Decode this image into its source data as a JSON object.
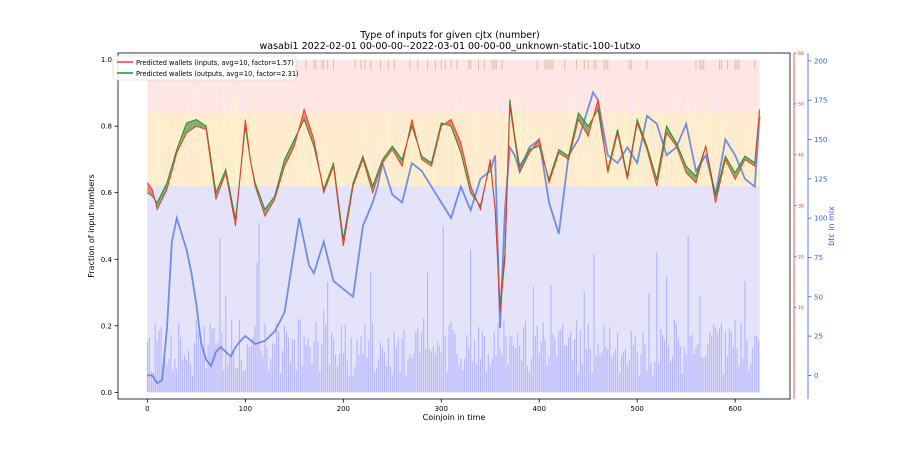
{
  "chart_data": {
    "type": "line",
    "title": "Type of inputs for given cjtx (number)",
    "subtitle": "wasabi1 2022-02-01 00-00-00--2022-03-01 00-00-00_unknown-static-100-1utxo",
    "xlabel": "Coinjoin in time",
    "ylabel": "Fraction of input numbers",
    "y2label": "btc in mix",
    "xlim": [
      -30,
      656
    ],
    "ylim": [
      -0.02,
      1.02
    ],
    "y2lim": [
      -15,
      205
    ],
    "y3lim": [
      -8,
      60
    ],
    "xticks": [
      0,
      100,
      200,
      300,
      400,
      500,
      600
    ],
    "yticks": [
      0.0,
      0.2,
      0.4,
      0.6,
      0.8,
      1.0
    ],
    "y2ticks": [
      0,
      25,
      50,
      75,
      100,
      125,
      150,
      175,
      200
    ],
    "y3ticks": [
      10,
      20,
      30,
      40,
      50,
      60
    ],
    "legend_position": "top-left",
    "legend": [
      {
        "label": "Predicted wallets (inputs, avg=10, factor=1.57)",
        "color": "#e8402f"
      },
      {
        "label": "Predicted wallets (outputs, avg=10, factor=2.31)",
        "color": "#2e8b2e"
      }
    ],
    "colors": {
      "inputs_line": "#e8402f",
      "outputs_line": "#2e8b2e",
      "btc_line": "#5b7fde",
      "stack_bottom": "#b4b4ff",
      "stack_middle": "#ffeeb8",
      "stack_top": "#ffc8c8",
      "y2_axis": "#3a62d8",
      "y3_axis": "#e0302a"
    },
    "series": [
      {
        "name": "Predicted wallets (inputs, avg=10, factor=1.57)",
        "x": [
          0,
          5,
          10,
          15,
          20,
          30,
          40,
          50,
          60,
          70,
          80,
          90,
          100,
          105,
          110,
          120,
          130,
          140,
          150,
          160,
          170,
          180,
          190,
          200,
          210,
          220,
          230,
          240,
          250,
          260,
          270,
          280,
          290,
          300,
          310,
          320,
          330,
          340,
          350,
          355,
          360,
          365,
          370,
          375,
          380,
          390,
          400,
          410,
          420,
          430,
          440,
          450,
          460,
          470,
          480,
          490,
          500,
          510,
          520,
          530,
          540,
          550,
          560,
          570,
          580,
          590,
          600,
          610,
          620,
          625
        ],
        "values": [
          0.63,
          0.61,
          0.55,
          0.58,
          0.61,
          0.72,
          0.78,
          0.8,
          0.79,
          0.58,
          0.66,
          0.5,
          0.82,
          0.7,
          0.62,
          0.53,
          0.58,
          0.68,
          0.74,
          0.85,
          0.76,
          0.6,
          0.68,
          0.44,
          0.62,
          0.7,
          0.6,
          0.69,
          0.73,
          0.68,
          0.82,
          0.7,
          0.68,
          0.8,
          0.82,
          0.75,
          0.62,
          0.55,
          0.7,
          0.55,
          0.24,
          0.4,
          0.86,
          0.76,
          0.66,
          0.72,
          0.76,
          0.63,
          0.72,
          0.7,
          0.82,
          0.77,
          0.88,
          0.66,
          0.78,
          0.64,
          0.81,
          0.73,
          0.62,
          0.78,
          0.74,
          0.66,
          0.63,
          0.74,
          0.57,
          0.7,
          0.64,
          0.7,
          0.68,
          0.85
        ]
      },
      {
        "name": "Predicted wallets (outputs, avg=10, factor=2.31)",
        "x": [
          0,
          5,
          10,
          15,
          20,
          30,
          40,
          50,
          60,
          70,
          80,
          90,
          100,
          105,
          110,
          120,
          130,
          140,
          150,
          160,
          170,
          180,
          190,
          200,
          210,
          220,
          230,
          240,
          250,
          260,
          270,
          280,
          290,
          300,
          310,
          320,
          330,
          340,
          350,
          355,
          360,
          365,
          370,
          375,
          380,
          390,
          400,
          410,
          420,
          430,
          440,
          450,
          460,
          470,
          480,
          490,
          500,
          510,
          520,
          530,
          540,
          550,
          560,
          570,
          580,
          590,
          600,
          610,
          620,
          625
        ],
        "values": [
          0.6,
          0.59,
          0.57,
          0.6,
          0.63,
          0.73,
          0.81,
          0.82,
          0.8,
          0.6,
          0.67,
          0.52,
          0.8,
          0.7,
          0.63,
          0.55,
          0.59,
          0.7,
          0.76,
          0.82,
          0.74,
          0.61,
          0.69,
          0.46,
          0.63,
          0.71,
          0.62,
          0.7,
          0.74,
          0.7,
          0.8,
          0.71,
          0.69,
          0.81,
          0.8,
          0.72,
          0.6,
          0.56,
          0.69,
          0.55,
          0.26,
          0.42,
          0.88,
          0.77,
          0.68,
          0.73,
          0.74,
          0.64,
          0.73,
          0.71,
          0.84,
          0.8,
          0.85,
          0.67,
          0.79,
          0.65,
          0.82,
          0.74,
          0.64,
          0.8,
          0.75,
          0.68,
          0.65,
          0.74,
          0.59,
          0.71,
          0.66,
          0.71,
          0.69,
          0.85
        ]
      },
      {
        "name": "",
        "axis": "btc in mix",
        "x": [
          0,
          5,
          10,
          15,
          20,
          25,
          30,
          35,
          40,
          45,
          50,
          55,
          60,
          65,
          70,
          75,
          80,
          85,
          90,
          95,
          100,
          110,
          120,
          130,
          140,
          150,
          155,
          160,
          165,
          170,
          175,
          180,
          190,
          200,
          210,
          220,
          230,
          235,
          240,
          250,
          260,
          270,
          280,
          290,
          300,
          310,
          320,
          330,
          340,
          350,
          355,
          360,
          365,
          370,
          375,
          380,
          390,
          400,
          410,
          420,
          430,
          440,
          450,
          455,
          460,
          470,
          480,
          490,
          500,
          510,
          520,
          530,
          540,
          550,
          560,
          570,
          580,
          590,
          600,
          610,
          620,
          625
        ],
        "values": [
          0,
          0,
          -5,
          -3,
          30,
          85,
          100,
          90,
          80,
          65,
          45,
          20,
          10,
          6,
          15,
          18,
          15,
          12,
          18,
          22,
          25,
          20,
          22,
          28,
          40,
          80,
          100,
          85,
          70,
          65,
          75,
          85,
          60,
          55,
          50,
          95,
          110,
          120,
          135,
          115,
          110,
          135,
          130,
          120,
          110,
          100,
          120,
          105,
          125,
          130,
          140,
          30,
          105,
          145,
          140,
          130,
          145,
          150,
          110,
          90,
          140,
          150,
          170,
          180,
          175,
          140,
          135,
          145,
          135,
          165,
          160,
          140,
          145,
          160,
          130,
          140,
          115,
          150,
          140,
          125,
          120,
          165
        ]
      }
    ]
  }
}
